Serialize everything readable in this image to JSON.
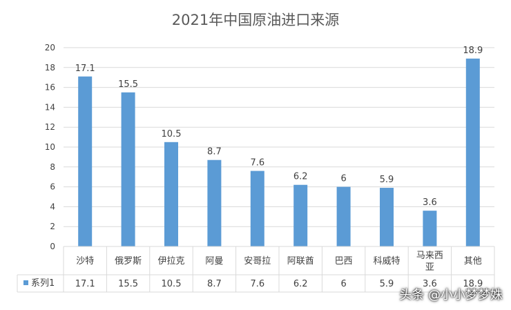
{
  "chart_data": {
    "type": "bar",
    "title": "2021年中国原油进口来源",
    "categories": [
      "沙特",
      "俄罗斯",
      "伊拉克",
      "阿曼",
      "安哥拉",
      "阿联酋",
      "巴西",
      "科威特",
      "马来西亚",
      "其他"
    ],
    "category_lines": [
      [
        "沙特"
      ],
      [
        "俄罗斯"
      ],
      [
        "伊拉克"
      ],
      [
        "阿曼"
      ],
      [
        "安哥拉"
      ],
      [
        "阿联酋"
      ],
      [
        "巴西"
      ],
      [
        "科威特"
      ],
      [
        "马来西",
        "亚"
      ],
      [
        "其他"
      ]
    ],
    "series": [
      {
        "name": "系列1",
        "values": [
          17.1,
          15.5,
          10.5,
          8.7,
          7.6,
          6.2,
          6,
          5.9,
          3.6,
          18.9
        ],
        "value_labels": [
          "17.1",
          "15.5",
          "10.5",
          "8.7",
          "7.6",
          "6.2",
          "6",
          "5.9",
          "3.6",
          "18.9"
        ]
      }
    ],
    "ylim": [
      0,
      20
    ],
    "yticks": [
      0,
      2,
      4,
      6,
      8,
      10,
      12,
      14,
      16,
      18,
      20
    ],
    "grid": true,
    "data_table": true,
    "colors": {
      "bar": "#5b9bd5",
      "grid": "#d9d9d9",
      "text": "#404040",
      "title": "#595959"
    }
  },
  "watermark": "头条 @小小梦梦姝"
}
